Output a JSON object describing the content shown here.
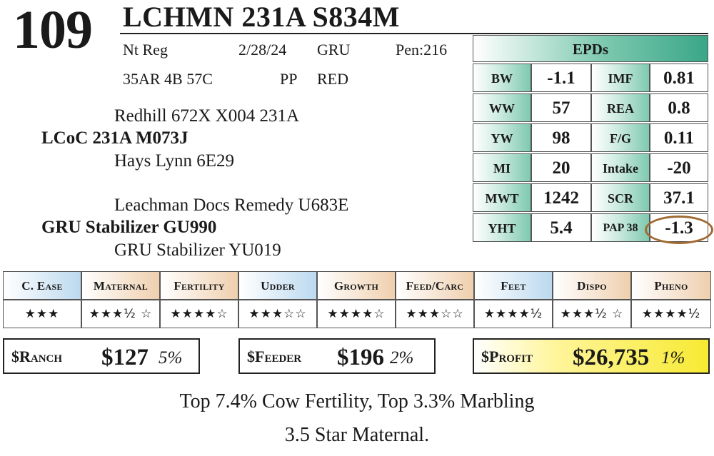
{
  "lot": {
    "number": "109"
  },
  "animal": {
    "name": "LCHMN 231A S834M",
    "registration": "Nt Reg",
    "birth_date": "2/28/24",
    "owner_code": "GRU",
    "pen": "Pen:216",
    "tattoos": "35AR 4B 57C",
    "polled": "PP",
    "color": "RED"
  },
  "pedigree": {
    "sire_sire": "Redhill 672X X004 231A",
    "sire": "LCoC 231A M073J",
    "sire_dam": "Hays Lynn 6E29",
    "dam_sire": "Leachman Docs Remedy U683E",
    "dam": "GRU Stabilizer GU990",
    "dam_dam": "GRU Stabilizer YU019"
  },
  "epds": {
    "title": "EPDs",
    "rows": [
      {
        "l1": "BW",
        "v1": "-1.1",
        "l2": "IMF",
        "v2": "0.81"
      },
      {
        "l1": "WW",
        "v1": "57",
        "l2": "REA",
        "v2": "0.8"
      },
      {
        "l1": "YW",
        "v1": "98",
        "l2": "F/G",
        "v2": "0.11"
      },
      {
        "l1": "MI",
        "v1": "20",
        "l2": "Intake",
        "v2": "-20"
      },
      {
        "l1": "MWT",
        "v1": "1242",
        "l2": "SCR",
        "v2": "37.1"
      },
      {
        "l1": "YHT",
        "v1": "5.4",
        "l2": "PAP 38",
        "v2": "-1.3"
      }
    ],
    "highlight_color": "#a06a34"
  },
  "ratings": [
    {
      "label": "C. Ease",
      "stars": "★★★",
      "rating": 3
    },
    {
      "label": "Maternal",
      "stars": "★★★½ ☆",
      "rating": 3.5
    },
    {
      "label": "Fertility",
      "stars": "★★★★☆",
      "rating": 4
    },
    {
      "label": "Udder",
      "stars": "★★★☆☆",
      "rating": 3
    },
    {
      "label": "Growth",
      "stars": "★★★★☆",
      "rating": 4
    },
    {
      "label": "Feed/Carc",
      "stars": "★★★☆☆",
      "rating": 3
    },
    {
      "label": "Feet",
      "stars": "★★★★½",
      "rating": 4.5
    },
    {
      "label": "Dispo",
      "stars": "★★★½ ☆",
      "rating": 3.5
    },
    {
      "label": "Pheno",
      "stars": "★★★★½",
      "rating": 4.5
    }
  ],
  "indexes": {
    "ranch": {
      "label": "$Ranch",
      "value": "$127",
      "percentile": "5%"
    },
    "feeder": {
      "label": "$Feeder",
      "value": "$196",
      "percentile": "2%"
    },
    "profit": {
      "label": "$Profit",
      "value": "$26,735",
      "percentile": "1%"
    }
  },
  "notes": {
    "line1": "Top 7.4% Cow Fertility, Top 3.3% Marbling",
    "line2": "3.5 Star Maternal."
  },
  "colors": {
    "epd_green": "#3aa687",
    "header_blue": "#bcd9ef",
    "header_tan": "#efcfae",
    "profit_yellow": "#f7ea33"
  }
}
